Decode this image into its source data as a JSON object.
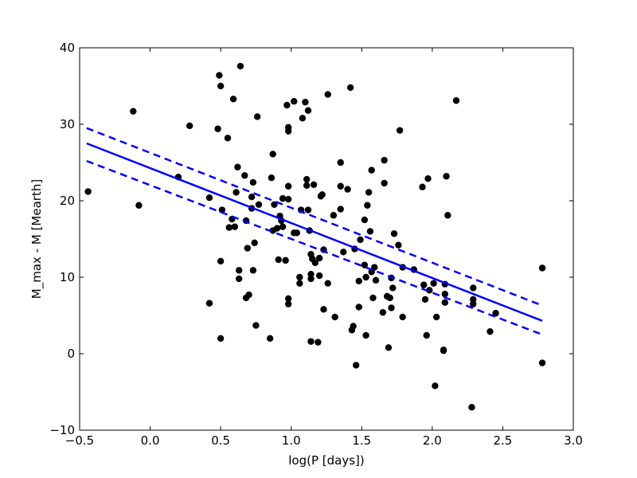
{
  "chart_data": {
    "type": "scatter",
    "title": "",
    "xlabel": "log(P [days])",
    "ylabel": "M_max - M [Mearth]",
    "xlim": [
      -0.5,
      3.0
    ],
    "ylim": [
      -10,
      40
    ],
    "xticks": [
      -0.5,
      0.0,
      0.5,
      1.0,
      1.5,
      2.0,
      2.5,
      3.0
    ],
    "xtick_labels": [
      "−0.5",
      "0.0",
      "0.5",
      "1.0",
      "1.5",
      "2.0",
      "2.5",
      "3.0"
    ],
    "yticks": [
      -10,
      0,
      10,
      20,
      30,
      40
    ],
    "ytick_labels": [
      "−10",
      "0",
      "10",
      "20",
      "30",
      "40"
    ],
    "grid": false,
    "legend": "none",
    "colors": {
      "points": "#000000",
      "fit": "#0000ff",
      "frame": "#000000"
    },
    "points": [
      [
        -0.44,
        21.2
      ],
      [
        -0.12,
        31.7
      ],
      [
        -0.08,
        19.4
      ],
      [
        0.2,
        23.1
      ],
      [
        0.28,
        29.8
      ],
      [
        0.42,
        20.4
      ],
      [
        0.42,
        6.6
      ],
      [
        0.48,
        29.4
      ],
      [
        0.49,
        36.4
      ],
      [
        0.5,
        35.0
      ],
      [
        0.5,
        12.1
      ],
      [
        0.5,
        2.0
      ],
      [
        0.51,
        18.8
      ],
      [
        0.55,
        28.2
      ],
      [
        0.56,
        16.5
      ],
      [
        0.58,
        17.6
      ],
      [
        0.59,
        33.3
      ],
      [
        0.6,
        16.6
      ],
      [
        0.61,
        21.1
      ],
      [
        0.62,
        24.4
      ],
      [
        0.63,
        10.9
      ],
      [
        0.63,
        9.8
      ],
      [
        0.64,
        37.6
      ],
      [
        0.67,
        23.3
      ],
      [
        0.68,
        17.4
      ],
      [
        0.68,
        7.3
      ],
      [
        0.69,
        13.8
      ],
      [
        0.7,
        7.7
      ],
      [
        0.72,
        19.0
      ],
      [
        0.72,
        20.5
      ],
      [
        0.73,
        22.4
      ],
      [
        0.73,
        10.9
      ],
      [
        0.74,
        14.5
      ],
      [
        0.75,
        3.7
      ],
      [
        0.76,
        31.0
      ],
      [
        0.77,
        19.5
      ],
      [
        0.85,
        2.0
      ],
      [
        0.86,
        23.0
      ],
      [
        0.87,
        26.1
      ],
      [
        0.87,
        16.1
      ],
      [
        0.88,
        19.5
      ],
      [
        0.9,
        16.4
      ],
      [
        0.91,
        12.3
      ],
      [
        0.92,
        18.0
      ],
      [
        0.93,
        17.4
      ],
      [
        0.94,
        16.6
      ],
      [
        0.94,
        20.3
      ],
      [
        0.96,
        12.2
      ],
      [
        0.97,
        32.5
      ],
      [
        0.98,
        29.6
      ],
      [
        0.98,
        29.1
      ],
      [
        0.98,
        21.9
      ],
      [
        0.98,
        20.2
      ],
      [
        0.98,
        7.2
      ],
      [
        0.98,
        6.5
      ],
      [
        1.02,
        33.0
      ],
      [
        1.02,
        15.8
      ],
      [
        1.04,
        15.8
      ],
      [
        1.06,
        10.0
      ],
      [
        1.06,
        9.2
      ],
      [
        1.07,
        18.8
      ],
      [
        1.08,
        30.8
      ],
      [
        1.1,
        32.9
      ],
      [
        1.11,
        22.8
      ],
      [
        1.11,
        22.0
      ],
      [
        1.12,
        31.8
      ],
      [
        1.12,
        18.8
      ],
      [
        1.13,
        16.1
      ],
      [
        1.14,
        13.0
      ],
      [
        1.14,
        10.4
      ],
      [
        1.14,
        9.8
      ],
      [
        1.14,
        1.6
      ],
      [
        1.15,
        12.4
      ],
      [
        1.16,
        22.1
      ],
      [
        1.17,
        11.9
      ],
      [
        1.19,
        1.5
      ],
      [
        1.2,
        12.5
      ],
      [
        1.2,
        10.2
      ],
      [
        1.21,
        20.6
      ],
      [
        1.22,
        20.8
      ],
      [
        1.23,
        13.6
      ],
      [
        1.23,
        5.8
      ],
      [
        1.26,
        33.9
      ],
      [
        1.26,
        9.2
      ],
      [
        1.3,
        18.1
      ],
      [
        1.31,
        4.8
      ],
      [
        1.35,
        25.0
      ],
      [
        1.35,
        18.9
      ],
      [
        1.35,
        21.9
      ],
      [
        1.37,
        13.3
      ],
      [
        1.4,
        21.5
      ],
      [
        1.42,
        34.8
      ],
      [
        1.43,
        3.1
      ],
      [
        1.44,
        3.6
      ],
      [
        1.45,
        13.7
      ],
      [
        1.46,
        -1.5
      ],
      [
        1.48,
        9.5
      ],
      [
        1.48,
        6.1
      ],
      [
        1.49,
        14.9
      ],
      [
        1.52,
        11.6
      ],
      [
        1.52,
        17.5
      ],
      [
        1.53,
        10.0
      ],
      [
        1.53,
        2.4
      ],
      [
        1.54,
        19.4
      ],
      [
        1.55,
        21.1
      ],
      [
        1.56,
        16.0
      ],
      [
        1.57,
        24.0
      ],
      [
        1.57,
        10.7
      ],
      [
        1.58,
        7.3
      ],
      [
        1.59,
        11.3
      ],
      [
        1.6,
        9.6
      ],
      [
        1.65,
        5.4
      ],
      [
        1.66,
        25.3
      ],
      [
        1.66,
        22.3
      ],
      [
        1.68,
        7.5
      ],
      [
        1.69,
        0.8
      ],
      [
        1.7,
        7.3
      ],
      [
        1.71,
        9.9
      ],
      [
        1.71,
        6.0
      ],
      [
        1.72,
        8.6
      ],
      [
        1.73,
        15.7
      ],
      [
        1.76,
        14.2
      ],
      [
        1.77,
        29.2
      ],
      [
        1.79,
        4.8
      ],
      [
        1.79,
        11.3
      ],
      [
        1.87,
        11.0
      ],
      [
        1.93,
        21.8
      ],
      [
        1.94,
        9.0
      ],
      [
        1.95,
        7.1
      ],
      [
        1.96,
        2.4
      ],
      [
        1.97,
        22.9
      ],
      [
        1.98,
        8.3
      ],
      [
        2.01,
        9.2
      ],
      [
        2.02,
        -4.2
      ],
      [
        2.03,
        4.8
      ],
      [
        2.08,
        0.5
      ],
      [
        2.08,
        0.4
      ],
      [
        2.09,
        6.7
      ],
      [
        2.09,
        7.8
      ],
      [
        2.09,
        9.1
      ],
      [
        2.1,
        23.2
      ],
      [
        2.11,
        18.1
      ],
      [
        2.17,
        33.1
      ],
      [
        2.28,
        -7.0
      ],
      [
        2.29,
        8.6
      ],
      [
        2.29,
        7.1
      ],
      [
        2.29,
        6.5
      ],
      [
        2.41,
        2.9
      ],
      [
        2.45,
        5.3
      ],
      [
        2.78,
        11.2
      ],
      [
        2.78,
        -1.2
      ]
    ],
    "fit_line": {
      "x": [
        -0.45,
        2.78
      ],
      "y": [
        27.5,
        4.3
      ]
    },
    "confidence_upper": {
      "x": [
        -0.45,
        2.78
      ],
      "y": [
        29.5,
        6.3
      ]
    },
    "confidence_lower": {
      "x": [
        -0.45,
        2.78
      ],
      "y": [
        25.2,
        2.5
      ]
    }
  }
}
